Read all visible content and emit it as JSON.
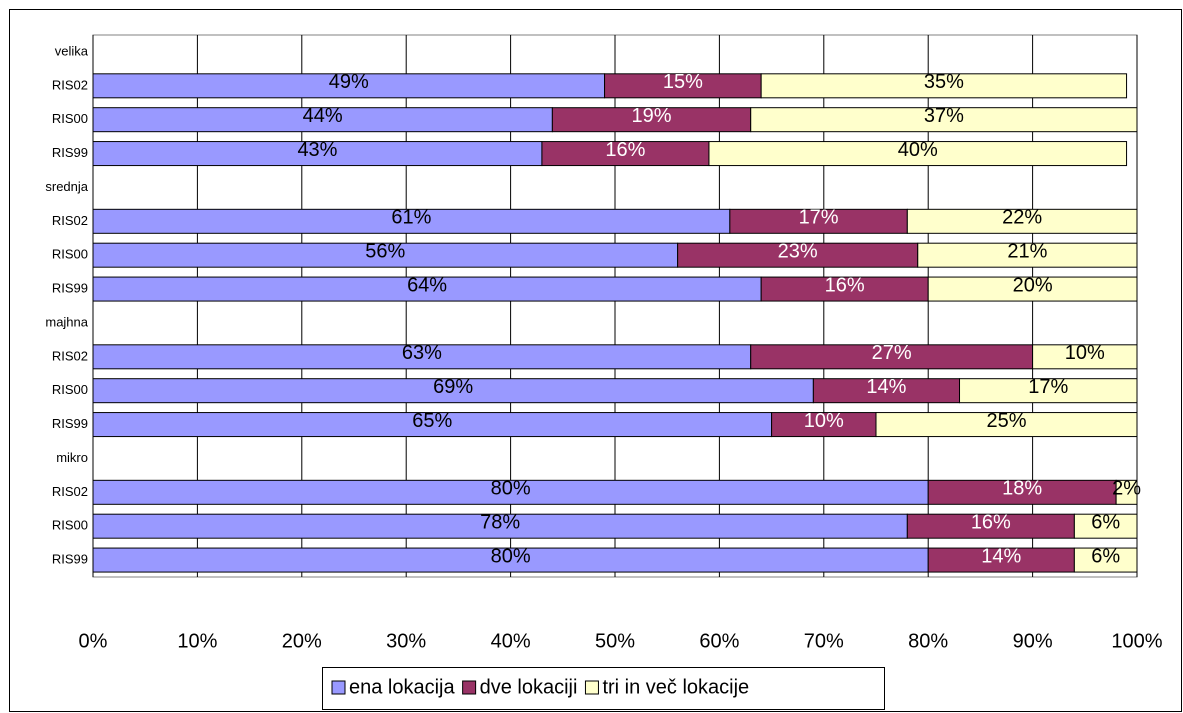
{
  "chart_data": {
    "type": "stacked-bar-horizontal",
    "categories": [
      "velika",
      "RIS02",
      "RIS00",
      "RIS99",
      "srednja",
      "RIS02",
      "RIS00",
      "RIS99",
      "majhna",
      "RIS02",
      "RIS00",
      "RIS99",
      "mikro",
      "RIS02",
      "RIS00",
      "RIS99"
    ],
    "series": [
      {
        "name": "ena lokacija",
        "color": "#9999ff",
        "values": [
          null,
          49,
          44,
          43,
          null,
          61,
          56,
          64,
          null,
          63,
          69,
          65,
          null,
          80,
          78,
          80
        ],
        "value_labels": [
          null,
          "49%",
          "44%",
          "43%",
          null,
          "61%",
          "56%",
          "64%",
          null,
          "63%",
          "69%",
          "65%",
          null,
          "80%",
          "78%",
          "80%"
        ]
      },
      {
        "name": "dve lokaciji",
        "color": "#993366",
        "values": [
          null,
          15,
          19,
          16,
          null,
          17,
          23,
          16,
          null,
          27,
          14,
          10,
          null,
          18,
          16,
          14
        ],
        "value_labels": [
          null,
          "15%",
          "19%",
          "16%",
          null,
          "17%",
          "23%",
          "16%",
          null,
          "27%",
          "14%",
          "10%",
          null,
          "18%",
          "16%",
          "14%"
        ]
      },
      {
        "name": "tri in več lokacije",
        "color": "#ffffcc",
        "values": [
          null,
          35,
          37,
          40,
          null,
          22,
          21,
          20,
          null,
          10,
          17,
          25,
          null,
          2,
          6,
          6
        ],
        "value_labels": [
          null,
          "35%",
          "37%",
          "40%",
          null,
          "22%",
          "21%",
          "20%",
          null,
          "10%",
          "17%",
          "25%",
          null,
          "2%",
          "6%",
          "6%"
        ]
      }
    ],
    "xlim": [
      0,
      100
    ],
    "xticks": [
      {
        "value": 0,
        "label": "0%"
      },
      {
        "value": 10,
        "label": "10%"
      },
      {
        "value": 20,
        "label": "20%"
      },
      {
        "value": 30,
        "label": "30%"
      },
      {
        "value": 40,
        "label": "40%"
      },
      {
        "value": 50,
        "label": "50%"
      },
      {
        "value": 60,
        "label": "60%"
      },
      {
        "value": 70,
        "label": "70%"
      },
      {
        "value": 80,
        "label": "80%"
      },
      {
        "value": 90,
        "label": "90%"
      },
      {
        "value": 100,
        "label": "100%"
      }
    ],
    "grid": true,
    "legend": "bottom"
  }
}
